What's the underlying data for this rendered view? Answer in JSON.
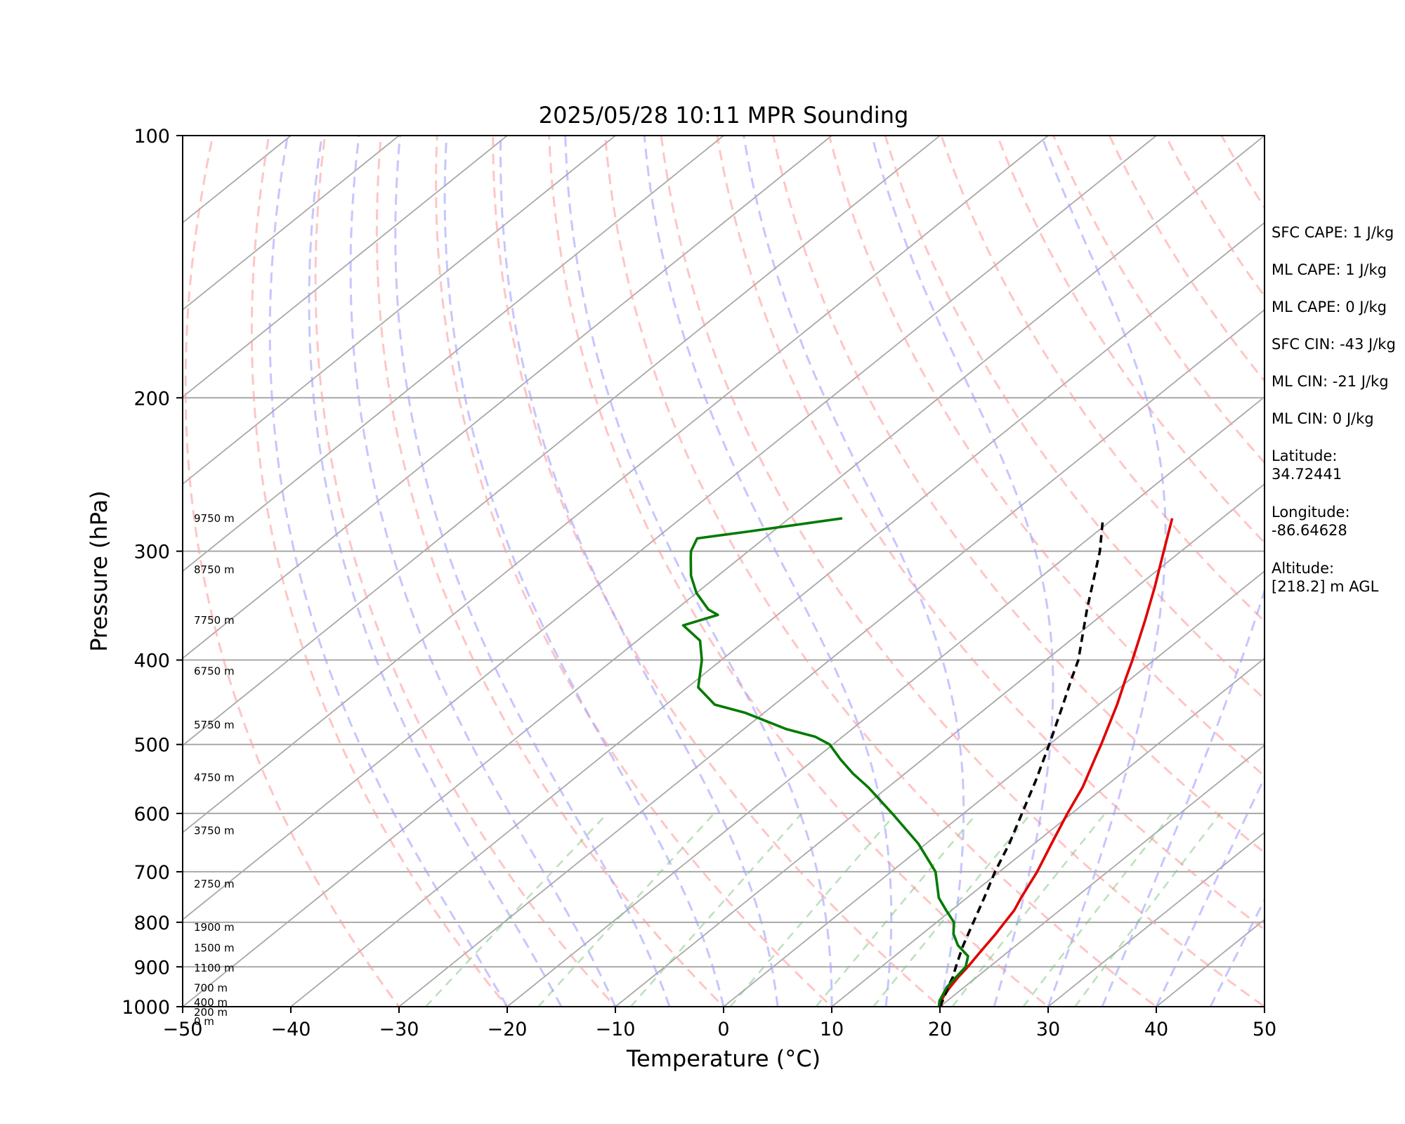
{
  "chart_data": {
    "type": "line",
    "title": "2025/05/28 10:11 MPR Sounding",
    "xlabel": "Temperature (°C)",
    "ylabel": "Pressure (hPa)",
    "xlim": [
      -50,
      50
    ],
    "ylim": [
      1000,
      100
    ],
    "y_scale": "log",
    "skew": "skew-T log-p",
    "x_ticks": [
      "−50",
      "−40",
      "−30",
      "−20",
      "−10",
      "0",
      "10",
      "20",
      "30",
      "40",
      "50"
    ],
    "x_tick_values": [
      -50,
      -40,
      -30,
      -20,
      -10,
      0,
      10,
      20,
      30,
      40,
      50
    ],
    "y_ticks": [
      "100",
      "200",
      "300",
      "400",
      "500",
      "600",
      "700",
      "800",
      "900",
      "1000"
    ],
    "y_tick_values": [
      100,
      200,
      300,
      400,
      500,
      600,
      700,
      800,
      900,
      1000
    ],
    "grid": true,
    "height_labels": [
      {
        "text": "9750 m",
        "p": 275
      },
      {
        "text": "8750 m",
        "p": 315
      },
      {
        "text": "7750 m",
        "p": 360
      },
      {
        "text": "6750 m",
        "p": 412
      },
      {
        "text": "5750 m",
        "p": 475
      },
      {
        "text": "4750 m",
        "p": 546
      },
      {
        "text": "3750 m",
        "p": 628
      },
      {
        "text": "2750 m",
        "p": 723
      },
      {
        "text": "1900 m",
        "p": 811
      },
      {
        "text": "1500 m",
        "p": 856
      },
      {
        "text": "1100 m",
        "p": 903
      },
      {
        "text": "700 m",
        "p": 952
      },
      {
        "text": "400 m",
        "p": 989
      },
      {
        "text": "200 m",
        "p": 1015
      },
      {
        "text": "0 m",
        "p": 1040
      }
    ],
    "series": [
      {
        "style": "temperature",
        "color": "#e00000",
        "dash": false,
        "points": [
          [
            1000,
            20.2
          ],
          [
            990,
            19.6
          ],
          [
            975,
            19.2
          ],
          [
            950,
            18.7
          ],
          [
            925,
            18.3
          ],
          [
            900,
            18.0
          ],
          [
            875,
            17.6
          ],
          [
            850,
            17.2
          ],
          [
            825,
            16.8
          ],
          [
            800,
            16.3
          ],
          [
            775,
            15.8
          ],
          [
            750,
            15.0
          ],
          [
            700,
            13.5
          ],
          [
            650,
            11.6
          ],
          [
            600,
            9.6
          ],
          [
            560,
            8.0
          ],
          [
            520,
            5.9
          ],
          [
            500,
            4.8
          ],
          [
            450,
            1.7
          ],
          [
            420,
            -0.5
          ],
          [
            400,
            -2.0
          ],
          [
            360,
            -5.4
          ],
          [
            330,
            -8.3
          ],
          [
            300,
            -11.6
          ],
          [
            275,
            -14.6
          ]
        ]
      },
      {
        "style": "parcel",
        "color": "#000000",
        "dash": true,
        "points": [
          [
            1000,
            20.0
          ],
          [
            975,
            19.3
          ],
          [
            950,
            18.5
          ],
          [
            925,
            17.8
          ],
          [
            900,
            16.9
          ],
          [
            875,
            16.0
          ],
          [
            850,
            15.1
          ],
          [
            800,
            13.4
          ],
          [
            750,
            11.6
          ],
          [
            700,
            9.6
          ],
          [
            650,
            7.7
          ],
          [
            600,
            5.4
          ],
          [
            550,
            2.9
          ],
          [
            500,
            0.0
          ],
          [
            450,
            -3.3
          ],
          [
            420,
            -5.5
          ],
          [
            400,
            -7.0
          ],
          [
            350,
            -12.0
          ],
          [
            300,
            -17.5
          ],
          [
            275,
            -21.0
          ]
        ]
      },
      {
        "style": "dewpoint",
        "color": "#007a00",
        "dash": false,
        "points": [
          [
            1000,
            19.9
          ],
          [
            985,
            19.3
          ],
          [
            950,
            18.4
          ],
          [
            925,
            18.1
          ],
          [
            900,
            17.8
          ],
          [
            875,
            16.8
          ],
          [
            850,
            14.6
          ],
          [
            825,
            12.9
          ],
          [
            800,
            11.6
          ],
          [
            775,
            9.5
          ],
          [
            750,
            7.4
          ],
          [
            700,
            4.1
          ],
          [
            650,
            -0.7
          ],
          [
            600,
            -6.6
          ],
          [
            560,
            -11.8
          ],
          [
            540,
            -14.8
          ],
          [
            520,
            -17.6
          ],
          [
            500,
            -20.3
          ],
          [
            490,
            -22.5
          ],
          [
            480,
            -26.1
          ],
          [
            460,
            -31.7
          ],
          [
            450,
            -35.5
          ],
          [
            430,
            -39.0
          ],
          [
            400,
            -41.8
          ],
          [
            380,
            -44.2
          ],
          [
            365,
            -47.5
          ],
          [
            355,
            -45.5
          ],
          [
            350,
            -47.0
          ],
          [
            335,
            -50.0
          ],
          [
            320,
            -52.5
          ],
          [
            305,
            -54.6
          ],
          [
            300,
            -55.3
          ],
          [
            290,
            -56.2
          ],
          [
            285,
            -52.4
          ],
          [
            275,
            -45.1
          ]
        ]
      }
    ]
  },
  "stats": {
    "sfc_cape": "SFC CAPE: 1 J/kg",
    "ml_cape_1": "ML CAPE: 1 J/kg",
    "ml_cape_2": "ML CAPE: 0 J/kg",
    "sfc_cin": "SFC CIN: -43 J/kg",
    "ml_cin_1": "ML CIN: -21 J/kg",
    "ml_cin_2": "ML CIN: 0 J/kg",
    "latitude_label": "Latitude:",
    "latitude_value": "34.72441",
    "longitude_label": "Longitude:",
    "longitude_value": "-86.64628",
    "altitude_label": "Altitude:",
    "altitude_value": "[218.2] m AGL"
  }
}
